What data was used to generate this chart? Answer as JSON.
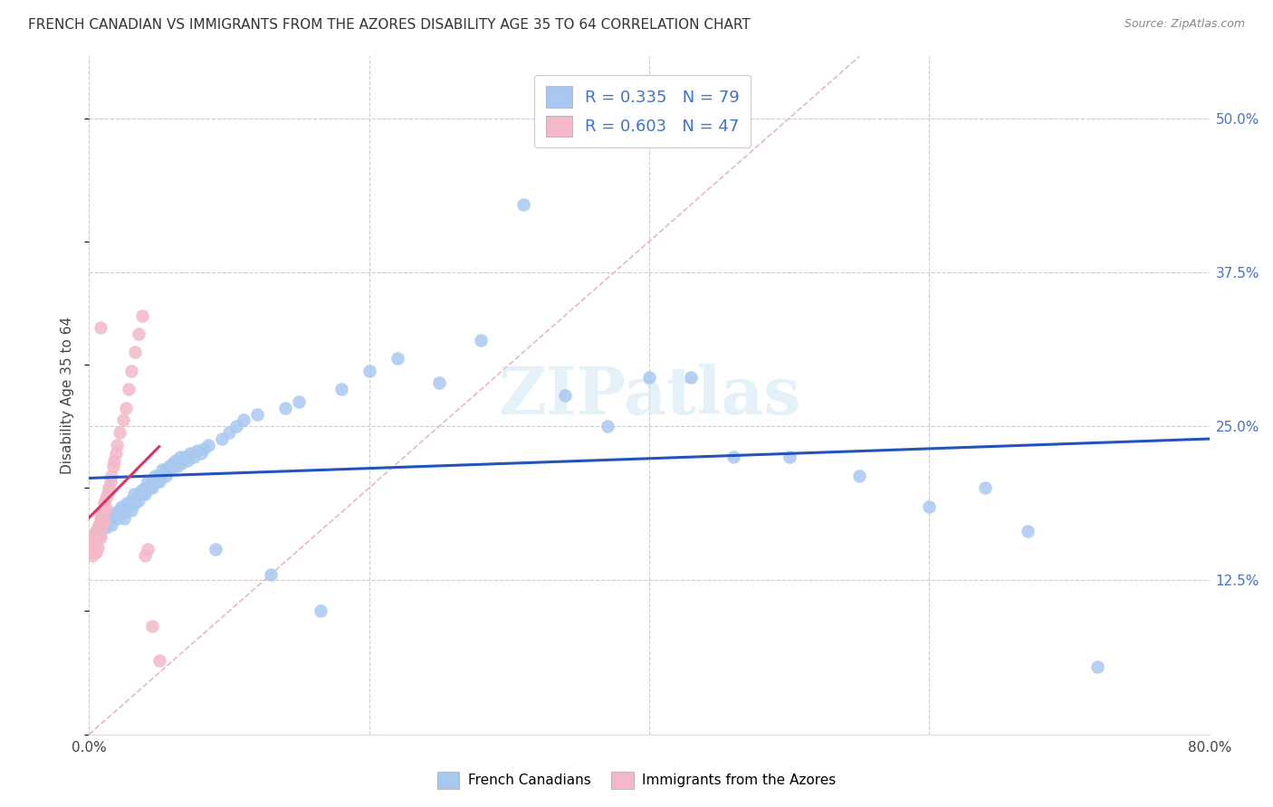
{
  "title": "FRENCH CANADIAN VS IMMIGRANTS FROM THE AZORES DISABILITY AGE 35 TO 64 CORRELATION CHART",
  "source": "Source: ZipAtlas.com",
  "ylabel": "Disability Age 35 to 64",
  "xmin": 0.0,
  "xmax": 0.8,
  "ymin": 0.0,
  "ymax": 0.55,
  "blue_R": 0.335,
  "blue_N": 79,
  "pink_R": 0.603,
  "pink_N": 47,
  "blue_color": "#a8c8f0",
  "pink_color": "#f4b8c8",
  "blue_line_color": "#2255bb",
  "pink_line_color": "#dd3366",
  "diagonal_color": "#e8b8c0",
  "legend_label_blue": "French Canadians",
  "legend_label_pink": "Immigrants from the Azores",
  "watermark": "ZIPatlas",
  "blue_scatter_x": [
    0.005,
    0.008,
    0.01,
    0.012,
    0.013,
    0.015,
    0.016,
    0.017,
    0.018,
    0.02,
    0.022,
    0.023,
    0.025,
    0.025,
    0.027,
    0.028,
    0.03,
    0.03,
    0.032,
    0.033,
    0.035,
    0.035,
    0.037,
    0.038,
    0.04,
    0.04,
    0.042,
    0.043,
    0.045,
    0.045,
    0.047,
    0.048,
    0.05,
    0.05,
    0.052,
    0.055,
    0.055,
    0.057,
    0.058,
    0.06,
    0.062,
    0.063,
    0.065,
    0.066,
    0.068,
    0.07,
    0.072,
    0.075,
    0.077,
    0.08,
    0.082,
    0.085,
    0.09,
    0.095,
    0.1,
    0.105,
    0.11,
    0.12,
    0.13,
    0.14,
    0.15,
    0.165,
    0.18,
    0.2,
    0.22,
    0.25,
    0.28,
    0.31,
    0.34,
    0.37,
    0.4,
    0.43,
    0.46,
    0.5,
    0.55,
    0.6,
    0.64,
    0.67,
    0.72
  ],
  "blue_scatter_y": [
    0.165,
    0.17,
    0.175,
    0.168,
    0.172,
    0.175,
    0.17,
    0.178,
    0.18,
    0.175,
    0.182,
    0.185,
    0.18,
    0.175,
    0.188,
    0.185,
    0.19,
    0.182,
    0.195,
    0.188,
    0.195,
    0.19,
    0.198,
    0.195,
    0.2,
    0.195,
    0.205,
    0.2,
    0.205,
    0.2,
    0.21,
    0.205,
    0.21,
    0.205,
    0.215,
    0.215,
    0.21,
    0.218,
    0.215,
    0.22,
    0.222,
    0.218,
    0.225,
    0.22,
    0.225,
    0.222,
    0.228,
    0.225,
    0.23,
    0.228,
    0.232,
    0.235,
    0.15,
    0.24,
    0.245,
    0.25,
    0.255,
    0.26,
    0.13,
    0.265,
    0.27,
    0.1,
    0.28,
    0.295,
    0.305,
    0.285,
    0.32,
    0.43,
    0.275,
    0.25,
    0.29,
    0.29,
    0.225,
    0.225,
    0.21,
    0.185,
    0.2,
    0.165,
    0.055
  ],
  "pink_scatter_x": [
    0.002,
    0.002,
    0.003,
    0.003,
    0.004,
    0.004,
    0.004,
    0.005,
    0.005,
    0.005,
    0.006,
    0.006,
    0.006,
    0.007,
    0.007,
    0.008,
    0.008,
    0.008,
    0.009,
    0.009,
    0.01,
    0.01,
    0.011,
    0.011,
    0.012,
    0.012,
    0.013,
    0.014,
    0.015,
    0.016,
    0.017,
    0.018,
    0.019,
    0.02,
    0.022,
    0.024,
    0.026,
    0.028,
    0.03,
    0.033,
    0.035,
    0.038,
    0.04,
    0.042,
    0.045,
    0.05,
    0.008
  ],
  "pink_scatter_y": [
    0.155,
    0.145,
    0.16,
    0.148,
    0.162,
    0.155,
    0.148,
    0.165,
    0.158,
    0.148,
    0.168,
    0.16,
    0.152,
    0.17,
    0.162,
    0.175,
    0.168,
    0.16,
    0.178,
    0.17,
    0.182,
    0.172,
    0.188,
    0.18,
    0.192,
    0.183,
    0.196,
    0.2,
    0.205,
    0.21,
    0.218,
    0.222,
    0.228,
    0.235,
    0.245,
    0.255,
    0.265,
    0.28,
    0.295,
    0.31,
    0.325,
    0.34,
    0.145,
    0.15,
    0.088,
    0.06,
    0.33
  ]
}
